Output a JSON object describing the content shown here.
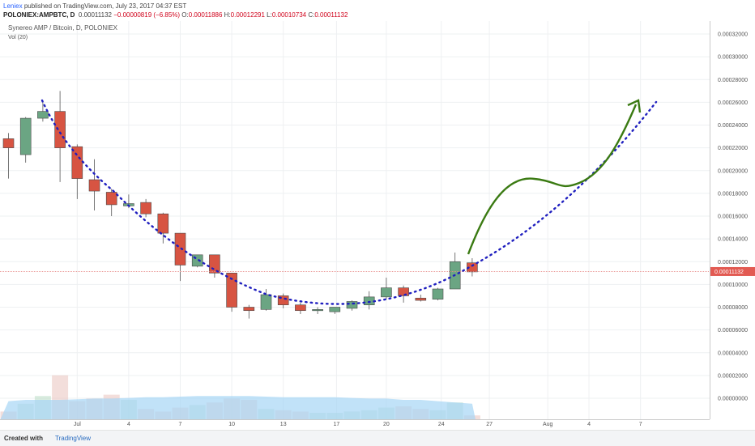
{
  "header": {
    "author": "Leniex",
    "published": "published on TradingView.com, July 23, 2017 04:37 EST",
    "symbol": "POLONIEX:AMPBTC, D",
    "last": "0.00011132",
    "change": "−0.00000819 (−6.85%)",
    "o_label": "O:",
    "o_value": "0.00011886",
    "h_label": "H:",
    "h_value": "0.00012291",
    "l_label": "L:",
    "l_value": "0.00010734",
    "c_label": "C:",
    "c_value": "0.00011132"
  },
  "footer": {
    "created_with": "Created with",
    "brand": "TradingView"
  },
  "colors": {
    "up": "#6ba583",
    "down": "#d75442",
    "dotted": "#1f1fbf",
    "arrow": "#3a7a12",
    "price_line": "#e88a86",
    "volume_ma": "#a6d6f5"
  },
  "chart_data": {
    "type": "candlestick",
    "title": "Synereo AMP / Bitcoin, D, POLONIEX",
    "subtitle": "Vol (20)",
    "last_price_label": "0.00011132",
    "y_ticks": [
      "0.00032000",
      "0.00030000",
      "0.00028000",
      "0.00026000",
      "0.00024000",
      "0.00022000",
      "0.00020000",
      "0.00018000",
      "0.00016000",
      "0.00014000",
      "0.00012000",
      "0.00010000",
      "0.00008000",
      "0.00006000",
      "0.00004000",
      "0.00002000",
      "0.00000000"
    ],
    "x_ticks": [
      "Jul",
      "4",
      "7",
      "10",
      "13",
      "17",
      "20",
      "24",
      "27",
      "Aug",
      "4",
      "7"
    ],
    "candles": [
      {
        "x": 0,
        "o": 0.000228,
        "h": 0.000233,
        "l": 0.000193,
        "c": 0.00022
      },
      {
        "x": 1,
        "o": 0.000214,
        "h": 0.000247,
        "l": 0.000207,
        "c": 0.000246
      },
      {
        "x": 2,
        "o": 0.000246,
        "h": 0.000261,
        "l": 0.000243,
        "c": 0.000252
      },
      {
        "x": 3,
        "o": 0.000252,
        "h": 0.00027,
        "l": 0.00019,
        "c": 0.00022
      },
      {
        "x": 4,
        "o": 0.000221,
        "h": 0.000223,
        "l": 0.000175,
        "c": 0.000193
      },
      {
        "x": 5,
        "o": 0.000192,
        "h": 0.00021,
        "l": 0.000165,
        "c": 0.000182
      },
      {
        "x": 6,
        "o": 0.000181,
        "h": 0.000184,
        "l": 0.00016,
        "c": 0.00017
      },
      {
        "x": 7,
        "o": 0.000169,
        "h": 0.000179,
        "l": 0.000167,
        "c": 0.000171
      },
      {
        "x": 8,
        "o": 0.000172,
        "h": 0.000175,
        "l": 0.000159,
        "c": 0.000162
      },
      {
        "x": 9,
        "o": 0.000162,
        "h": 0.000163,
        "l": 0.000136,
        "c": 0.000145
      },
      {
        "x": 10,
        "o": 0.000145,
        "h": 0.000145,
        "l": 0.000103,
        "c": 0.000117
      },
      {
        "x": 11,
        "o": 0.000116,
        "h": 0.000125,
        "l": 0.000115,
        "c": 0.000126
      },
      {
        "x": 12,
        "o": 0.000126,
        "h": 0.000126,
        "l": 0.000106,
        "c": 0.00011
      },
      {
        "x": 13,
        "o": 0.00011,
        "h": 0.00011,
        "l": 7.6e-05,
        "c": 8e-05
      },
      {
        "x": 14,
        "o": 8e-05,
        "h": 8.2e-05,
        "l": 7e-05,
        "c": 7.7e-05
      },
      {
        "x": 15,
        "o": 7.8e-05,
        "h": 9.6e-05,
        "l": 7.7e-05,
        "c": 9.1e-05
      },
      {
        "x": 16,
        "o": 9e-05,
        "h": 9.2e-05,
        "l": 7.9e-05,
        "c": 8.2e-05
      },
      {
        "x": 17,
        "o": 8.2e-05,
        "h": 8.4e-05,
        "l": 7.4e-05,
        "c": 7.7e-05
      },
      {
        "x": 18,
        "o": 7.7e-05,
        "h": 8e-05,
        "l": 7.4e-05,
        "c": 7.8e-05
      },
      {
        "x": 19,
        "o": 7.6e-05,
        "h": 8e-05,
        "l": 7.4e-05,
        "c": 8e-05
      },
      {
        "x": 20,
        "o": 7.9e-05,
        "h": 8.6e-05,
        "l": 7.7e-05,
        "c": 8.5e-05
      },
      {
        "x": 21,
        "o": 8.2e-05,
        "h": 9.4e-05,
        "l": 7.8e-05,
        "c": 8.9e-05
      },
      {
        "x": 22,
        "o": 8.9e-05,
        "h": 0.000106,
        "l": 8.7e-05,
        "c": 9.7e-05
      },
      {
        "x": 23,
        "o": 9.7e-05,
        "h": 9.9e-05,
        "l": 8.4e-05,
        "c": 9e-05
      },
      {
        "x": 24,
        "o": 8.8e-05,
        "h": 9.1e-05,
        "l": 8.5e-05,
        "c": 8.6e-05
      },
      {
        "x": 25,
        "o": 8.7e-05,
        "h": 9.7e-05,
        "l": 8.6e-05,
        "c": 9.6e-05
      },
      {
        "x": 26,
        "o": 9.6e-05,
        "h": 0.000128,
        "l": 9.6e-05,
        "c": 0.00012
      },
      {
        "x": 27,
        "o": 0.000119,
        "h": 0.000123,
        "l": 0.000107,
        "c": 0.000111
      }
    ],
    "volume": [
      0.06,
      0.12,
      0.18,
      0.34,
      0.14,
      0.16,
      0.19,
      0.15,
      0.08,
      0.06,
      0.09,
      0.11,
      0.13,
      0.16,
      0.15,
      0.08,
      0.07,
      0.06,
      0.05,
      0.05,
      0.06,
      0.07,
      0.09,
      0.1,
      0.08,
      0.07,
      0.13,
      0.03
    ],
    "volume_ma": [
      0.14,
      0.15,
      0.15,
      0.15,
      0.155,
      0.16,
      0.16,
      0.165,
      0.17,
      0.17,
      0.175,
      0.18,
      0.18,
      0.18,
      0.18,
      0.175,
      0.17,
      0.17,
      0.17,
      0.17,
      0.165,
      0.16,
      0.16,
      0.15,
      0.15,
      0.14,
      0.13,
      0.12
    ],
    "volume_scale_max": 1
  }
}
